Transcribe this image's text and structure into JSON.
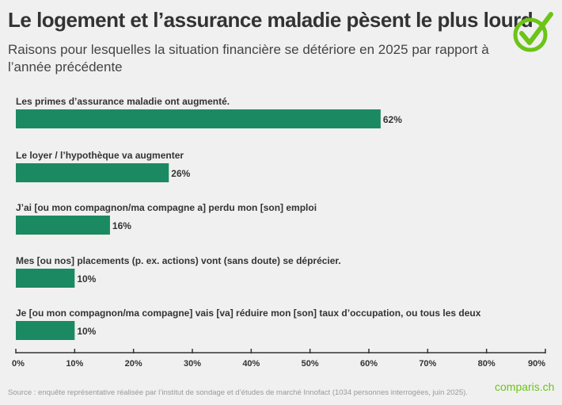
{
  "header": {
    "title": "Le logement et l’assurance maladie pèsent le plus lourd",
    "subtitle": "Raisons pour lesquelles la situation financière se détériore en 2025 par rapport à l’année précédente"
  },
  "chart_data": {
    "type": "bar",
    "orientation": "horizontal",
    "categories": [
      "Les primes d’assurance maladie ont augmenté.",
      "Le loyer / l’hypothèque va augmenter",
      "J’ai [ou mon compagnon/ma compagne a] perdu mon [son] emploi",
      "Mes [ou nos] placements (p. ex. actions) vont (sans doute) se déprécier.",
      "Je [ou mon compagnon/ma compagne] vais [va] réduire mon [son] taux d’occupation, ou tous les deux"
    ],
    "values": [
      62,
      26,
      16,
      10,
      10
    ],
    "data_labels": [
      "62%",
      "26%",
      "16%",
      "10%",
      "10%"
    ],
    "xlim": [
      0,
      90
    ],
    "ticks": [
      "0%",
      "10%",
      "20%",
      "30%",
      "40%",
      "50%",
      "60%",
      "70%",
      "80%",
      "90%"
    ],
    "bar_color": "#1b8a62",
    "grid": false
  },
  "footer": {
    "source": "Source : enquête représentative réalisée par l’institut de sondage et d’études de marché Innofact (1034 personnes interrogées, juin 2025).",
    "brand": "comparis.ch",
    "brand_color": "#6cc417"
  }
}
